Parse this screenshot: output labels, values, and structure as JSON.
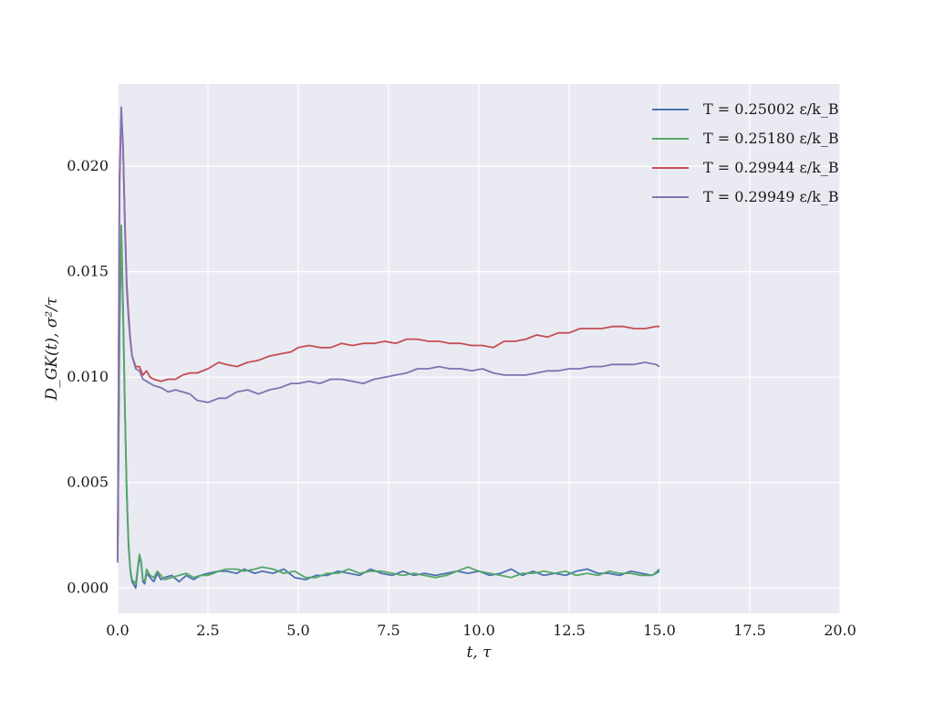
{
  "chart_data": {
    "type": "line",
    "xlabel": "t, τ",
    "ylabel": "D_GK(t), σ²/τ",
    "xlim": [
      0,
      20
    ],
    "ylim": [
      -0.0012,
      0.0239
    ],
    "x_ticks": [
      0,
      2.5,
      5,
      7.5,
      10,
      12.5,
      15,
      17.5,
      20
    ],
    "x_tick_labels": [
      "0.0",
      "2.5",
      "5.0",
      "7.5",
      "10.0",
      "12.5",
      "15.0",
      "17.5",
      "20.0"
    ],
    "y_ticks": [
      0,
      0.005,
      0.01,
      0.015,
      0.02
    ],
    "y_tick_labels": [
      "0.000",
      "0.005",
      "0.010",
      "0.015",
      "0.020"
    ],
    "grid": true,
    "legend_position": "top-right",
    "series": [
      {
        "name": "T = 0.25002 ε/k_B",
        "color": "#4c72b0",
        "x": [
          0.0,
          0.05,
          0.1,
          0.15,
          0.2,
          0.25,
          0.3,
          0.35,
          0.4,
          0.5,
          0.6,
          0.65,
          0.7,
          0.75,
          0.8,
          0.9,
          1.0,
          1.1,
          1.2,
          1.3,
          1.5,
          1.7,
          1.9,
          2.1,
          2.3,
          2.5,
          2.8,
          3.0,
          3.3,
          3.5,
          3.8,
          4.0,
          4.3,
          4.6,
          4.9,
          5.2,
          5.5,
          5.8,
          6.1,
          6.4,
          6.7,
          7.0,
          7.3,
          7.6,
          7.9,
          8.2,
          8.5,
          8.8,
          9.1,
          9.4,
          9.7,
          10.0,
          10.3,
          10.6,
          10.9,
          11.2,
          11.5,
          11.8,
          12.1,
          12.4,
          12.7,
          13.0,
          13.3,
          13.6,
          13.9,
          14.2,
          14.5,
          14.8,
          15.0
        ],
        "y": [
          0.0013,
          0.012,
          0.0168,
          0.013,
          0.0085,
          0.0045,
          0.002,
          0.0008,
          0.0003,
          0.0,
          0.0015,
          0.0012,
          0.0003,
          0.0002,
          0.0007,
          0.0005,
          0.0003,
          0.0007,
          0.0004,
          0.0005,
          0.0006,
          0.0003,
          0.0006,
          0.0004,
          0.0006,
          0.0007,
          0.0008,
          0.0008,
          0.0007,
          0.0009,
          0.0007,
          0.0008,
          0.0007,
          0.0009,
          0.0005,
          0.0004,
          0.0006,
          0.0006,
          0.0008,
          0.0007,
          0.0006,
          0.0009,
          0.0007,
          0.0006,
          0.0008,
          0.0006,
          0.0007,
          0.0006,
          0.0007,
          0.0008,
          0.0007,
          0.0008,
          0.0006,
          0.0007,
          0.0009,
          0.0006,
          0.0008,
          0.0006,
          0.0007,
          0.0006,
          0.0008,
          0.0009,
          0.0007,
          0.0007,
          0.0006,
          0.0008,
          0.0007,
          0.0006,
          0.0008
        ]
      },
      {
        "name": "T = 0.25180 ε/k_B",
        "color": "#55a868",
        "x": [
          0.0,
          0.05,
          0.1,
          0.15,
          0.2,
          0.25,
          0.3,
          0.35,
          0.4,
          0.5,
          0.6,
          0.65,
          0.7,
          0.75,
          0.8,
          0.9,
          1.0,
          1.1,
          1.2,
          1.3,
          1.5,
          1.7,
          1.9,
          2.1,
          2.3,
          2.5,
          2.8,
          3.0,
          3.3,
          3.5,
          3.8,
          4.0,
          4.3,
          4.6,
          4.9,
          5.2,
          5.5,
          5.8,
          6.1,
          6.4,
          6.7,
          7.0,
          7.3,
          7.6,
          7.9,
          8.2,
          8.5,
          8.8,
          9.1,
          9.4,
          9.7,
          10.0,
          10.3,
          10.6,
          10.9,
          11.2,
          11.5,
          11.8,
          12.1,
          12.4,
          12.7,
          13.0,
          13.3,
          13.6,
          13.9,
          14.2,
          14.5,
          14.8,
          15.0
        ],
        "y": [
          0.0014,
          0.0125,
          0.0172,
          0.0135,
          0.0088,
          0.0048,
          0.0022,
          0.0009,
          0.0004,
          0.0002,
          0.0016,
          0.0013,
          0.0004,
          0.0003,
          0.0009,
          0.0006,
          0.0005,
          0.0008,
          0.0006,
          0.0004,
          0.0005,
          0.0006,
          0.0007,
          0.0005,
          0.0006,
          0.0006,
          0.0008,
          0.0009,
          0.0009,
          0.0008,
          0.0009,
          0.001,
          0.0009,
          0.0007,
          0.0008,
          0.0005,
          0.0005,
          0.0007,
          0.0007,
          0.0009,
          0.0007,
          0.0008,
          0.0008,
          0.0007,
          0.0006,
          0.0007,
          0.0006,
          0.0005,
          0.0006,
          0.0008,
          0.001,
          0.0008,
          0.0007,
          0.0006,
          0.0005,
          0.0007,
          0.0007,
          0.0008,
          0.0007,
          0.0008,
          0.0006,
          0.0007,
          0.0006,
          0.0008,
          0.0007,
          0.0007,
          0.0006,
          0.0006,
          0.0009
        ]
      },
      {
        "name": "T = 0.29944 ε/k_B",
        "color": "#c44e52",
        "x": [
          0.0,
          0.05,
          0.1,
          0.15,
          0.2,
          0.25,
          0.3,
          0.35,
          0.4,
          0.5,
          0.6,
          0.7,
          0.8,
          0.9,
          1.0,
          1.2,
          1.4,
          1.6,
          1.8,
          2.0,
          2.2,
          2.5,
          2.8,
          3.0,
          3.3,
          3.6,
          3.9,
          4.2,
          4.5,
          4.8,
          5.0,
          5.3,
          5.6,
          5.9,
          6.2,
          6.5,
          6.8,
          7.1,
          7.4,
          7.7,
          8.0,
          8.3,
          8.6,
          8.9,
          9.2,
          9.5,
          9.8,
          10.1,
          10.4,
          10.7,
          11.0,
          11.3,
          11.6,
          11.9,
          12.2,
          12.5,
          12.8,
          13.1,
          13.4,
          13.7,
          14.0,
          14.3,
          14.6,
          14.9,
          15.0
        ],
        "y": [
          0.0015,
          0.019,
          0.0226,
          0.021,
          0.0175,
          0.0145,
          0.013,
          0.0118,
          0.011,
          0.0105,
          0.0105,
          0.0101,
          0.0103,
          0.01,
          0.0099,
          0.0098,
          0.0099,
          0.0099,
          0.0101,
          0.0102,
          0.0102,
          0.0104,
          0.0107,
          0.0106,
          0.0105,
          0.0107,
          0.0108,
          0.011,
          0.0111,
          0.0112,
          0.0114,
          0.0115,
          0.0114,
          0.0114,
          0.0116,
          0.0115,
          0.0116,
          0.0116,
          0.0117,
          0.0116,
          0.0118,
          0.0118,
          0.0117,
          0.0117,
          0.0116,
          0.0116,
          0.0115,
          0.0115,
          0.0114,
          0.0117,
          0.0117,
          0.0118,
          0.012,
          0.0119,
          0.0121,
          0.0121,
          0.0123,
          0.0123,
          0.0123,
          0.0124,
          0.0124,
          0.0123,
          0.0123,
          0.0124,
          0.0124
        ]
      },
      {
        "name": "T = 0.29949 ε/k_B",
        "color": "#8172b2",
        "x": [
          0.0,
          0.05,
          0.1,
          0.15,
          0.2,
          0.25,
          0.3,
          0.35,
          0.4,
          0.5,
          0.6,
          0.7,
          0.8,
          0.9,
          1.0,
          1.2,
          1.4,
          1.6,
          1.8,
          2.0,
          2.2,
          2.5,
          2.8,
          3.0,
          3.3,
          3.6,
          3.9,
          4.2,
          4.5,
          4.8,
          5.0,
          5.3,
          5.6,
          5.9,
          6.2,
          6.5,
          6.8,
          7.1,
          7.4,
          7.7,
          8.0,
          8.3,
          8.6,
          8.9,
          9.2,
          9.5,
          9.8,
          10.1,
          10.4,
          10.7,
          11.0,
          11.3,
          11.6,
          11.9,
          12.2,
          12.5,
          12.8,
          13.1,
          13.4,
          13.7,
          14.0,
          14.3,
          14.6,
          14.9,
          15.0
        ],
        "y": [
          0.0012,
          0.0195,
          0.0228,
          0.0208,
          0.0172,
          0.0142,
          0.0128,
          0.0117,
          0.011,
          0.0104,
          0.0103,
          0.0099,
          0.0098,
          0.0097,
          0.0096,
          0.0095,
          0.0093,
          0.0094,
          0.0093,
          0.0092,
          0.0089,
          0.0088,
          0.009,
          0.009,
          0.0093,
          0.0094,
          0.0092,
          0.0094,
          0.0095,
          0.0097,
          0.0097,
          0.0098,
          0.0097,
          0.0099,
          0.0099,
          0.0098,
          0.0097,
          0.0099,
          0.01,
          0.0101,
          0.0102,
          0.0104,
          0.0104,
          0.0105,
          0.0104,
          0.0104,
          0.0103,
          0.0104,
          0.0102,
          0.0101,
          0.0101,
          0.0101,
          0.0102,
          0.0103,
          0.0103,
          0.0104,
          0.0104,
          0.0105,
          0.0105,
          0.0106,
          0.0106,
          0.0106,
          0.0107,
          0.0106,
          0.0105
        ]
      }
    ]
  }
}
